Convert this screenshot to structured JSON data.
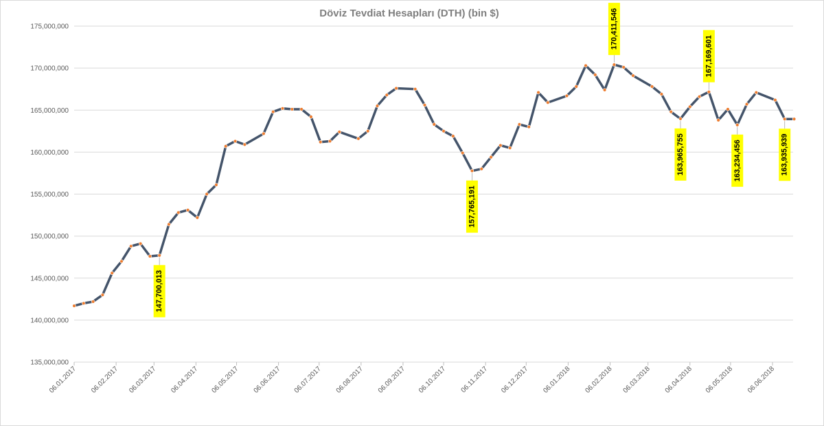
{
  "chart_data": {
    "type": "line",
    "title": "Döviz Tevdiat Hesapları (DTH) (bin $)",
    "xlabel": "",
    "ylabel": "",
    "ylim": [
      135000000,
      175000000
    ],
    "yticks": [
      135000000,
      140000000,
      145000000,
      150000000,
      155000000,
      160000000,
      165000000,
      170000000,
      175000000
    ],
    "ytick_labels": [
      "135,000,000",
      "140,000,000",
      "145,000,000",
      "150,000,000",
      "155,000,000",
      "160,000,000",
      "165,000,000",
      "170,000,000",
      "175,000,000"
    ],
    "x_tick_labels": [
      "06.01.2017",
      "06.02.2017",
      "06.03.2017",
      "06.04.2017",
      "06.05.2017",
      "06.06.2017",
      "06.07.2017",
      "06.08.2017",
      "06.09.2017",
      "06.10.2017",
      "06.11.2017",
      "06.12.2017",
      "06.01.2018",
      "06.02.2018",
      "06.03.2018",
      "06.04.2018",
      "06.05.2018",
      "06.06.2018"
    ],
    "grid": true,
    "legend": "none",
    "colors": {
      "line": "#44546a",
      "marker": "#ed7d31",
      "callout_bg": "#ffff00",
      "grid": "#d9d9d9",
      "title": "#7f7f7f"
    },
    "series": [
      {
        "x": [
          "06.01.2017",
          "13.01.2017",
          "20.01.2017",
          "27.01.2017",
          "03.02.2017",
          "10.02.2017",
          "17.02.2017",
          "24.02.2017",
          "03.03.2017",
          "10.03.2017",
          "17.03.2017",
          "24.03.2017",
          "31.03.2017",
          "07.04.2017",
          "14.04.2017",
          "21.04.2017",
          "28.04.2017",
          "05.05.2017",
          "12.05.2017",
          "26.05.2017",
          "02.06.2017",
          "09.06.2017",
          "16.06.2017",
          "23.06.2017",
          "30.06.2017",
          "07.07.2017",
          "14.07.2017",
          "21.07.2017",
          "04.08.2017",
          "11.08.2017",
          "18.08.2017",
          "25.08.2017",
          "01.09.2017",
          "15.09.2017",
          "22.09.2017",
          "29.09.2017",
          "06.10.2017",
          "13.10.2017",
          "20.10.2017",
          "27.10.2017",
          "03.11.2017",
          "10.11.2017",
          "17.11.2017",
          "24.11.2017",
          "01.12.2017",
          "08.12.2017",
          "15.12.2017",
          "22.12.2017",
          "05.01.2018",
          "12.01.2018",
          "19.01.2018",
          "26.01.2018",
          "02.02.2018",
          "09.02.2018",
          "16.02.2018",
          "23.02.2018",
          "09.03.2018",
          "16.03.2018",
          "23.03.2018",
          "30.03.2018",
          "06.04.2018",
          "13.04.2018",
          "20.04.2018",
          "27.04.2018",
          "04.05.2018",
          "11.05.2018",
          "18.05.2018",
          "25.05.2018",
          "08.06.2018",
          "15.06.2018",
          "22.06.2018"
        ],
        "values": [
          141700000,
          142000000,
          142200000,
          143000000,
          145600000,
          147000000,
          148800000,
          149100000,
          147600000,
          147700013,
          151400000,
          152800000,
          153100000,
          152200000,
          155000000,
          156100000,
          160700000,
          161300000,
          160900000,
          162200000,
          164800000,
          165200000,
          165100000,
          165100000,
          164200000,
          161200000,
          161300000,
          162400000,
          161600000,
          162500000,
          165500000,
          166800000,
          167600000,
          167500000,
          165600000,
          163300000,
          162500000,
          161900000,
          159900000,
          157765191,
          158000000,
          159400000,
          160800000,
          160500000,
          163300000,
          163000000,
          167100000,
          165900000,
          166700000,
          167800000,
          170300000,
          169200000,
          167400000,
          170411546,
          170100000,
          169100000,
          167800000,
          166900000,
          164800000,
          163965755,
          165400000,
          166600000,
          167169601,
          163800000,
          165100000,
          163234456,
          165700000,
          167100000,
          166200000,
          163935939,
          163935939
        ]
      }
    ],
    "callouts": [
      {
        "index": 9,
        "label": "147,700,013"
      },
      {
        "index": 39,
        "label": "157,765,191"
      },
      {
        "index": 53,
        "label": "170,411,546"
      },
      {
        "index": 59,
        "label": "163,965,755"
      },
      {
        "index": 62,
        "label": "167,169,601"
      },
      {
        "index": 65,
        "label": "163,234,456"
      },
      {
        "index": 69,
        "label": "163,935,939"
      }
    ]
  }
}
